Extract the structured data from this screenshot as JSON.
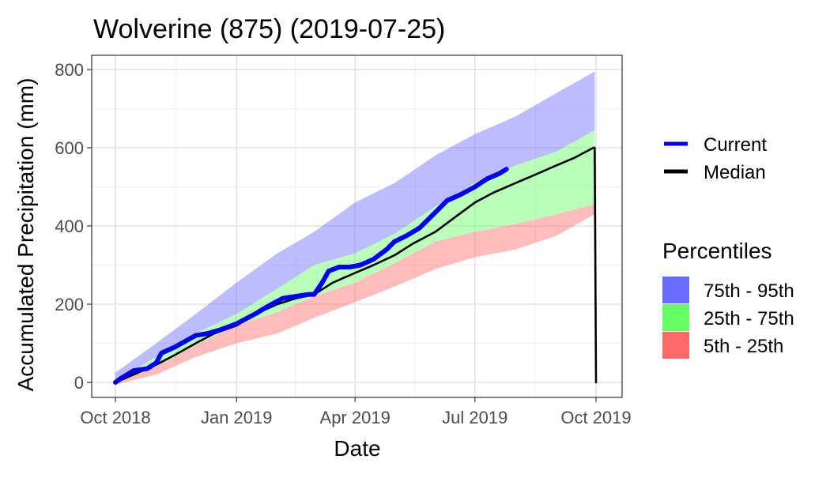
{
  "chart_data": {
    "type": "area",
    "title": "Wolverine (875) (2019-07-25)",
    "xlabel": "Date",
    "ylabel": "Accumulated Precipitation (mm)",
    "xlim": [
      "2018-10-01",
      "2019-10-01"
    ],
    "ylim": [
      0,
      800
    ],
    "x_ticks": [
      {
        "date": "2018-10-01",
        "label": "Oct 2018"
      },
      {
        "date": "2019-01-01",
        "label": "Jan 2019"
      },
      {
        "date": "2019-04-01",
        "label": "Apr 2019"
      },
      {
        "date": "2019-07-01",
        "label": "Jul 2019"
      },
      {
        "date": "2019-10-01",
        "label": "Oct 2019"
      }
    ],
    "y_ticks": [
      0,
      200,
      400,
      600,
      800
    ],
    "grid": true,
    "legend_position": "right",
    "legend_lines_title": "",
    "legend_bands_title": "Percentiles",
    "bands": [
      {
        "name": "75th - 95th",
        "color": "#6b6bff",
        "x": [
          "2018-10-01",
          "2018-11-01",
          "2018-12-01",
          "2019-01-01",
          "2019-02-01",
          "2019-03-01",
          "2019-04-01",
          "2019-05-01",
          "2019-06-01",
          "2019-07-01",
          "2019-08-01",
          "2019-09-01",
          "2019-09-30"
        ],
        "lower": [
          3,
          65,
          125,
          175,
          240,
          300,
          330,
          380,
          450,
          510,
          555,
          590,
          645
        ],
        "upper": [
          25,
          100,
          175,
          255,
          330,
          385,
          460,
          510,
          580,
          635,
          680,
          740,
          795
        ]
      },
      {
        "name": "25th - 75th",
        "color": "#66ff66",
        "x": [
          "2018-10-01",
          "2018-11-01",
          "2018-12-01",
          "2019-01-01",
          "2019-02-01",
          "2019-03-01",
          "2019-04-01",
          "2019-05-01",
          "2019-06-01",
          "2019-07-01",
          "2019-08-01",
          "2019-09-01",
          "2019-09-30"
        ],
        "lower": [
          -3,
          40,
          95,
          145,
          180,
          220,
          255,
          305,
          360,
          385,
          405,
          430,
          455
        ],
        "upper": [
          3,
          65,
          125,
          175,
          240,
          300,
          330,
          380,
          450,
          510,
          555,
          590,
          645
        ]
      },
      {
        "name": "5th - 25th",
        "color": "#ff6b6b",
        "x": [
          "2018-10-01",
          "2018-11-01",
          "2018-12-01",
          "2019-01-01",
          "2019-02-01",
          "2019-03-01",
          "2019-04-01",
          "2019-05-01",
          "2019-06-01",
          "2019-07-01",
          "2019-08-01",
          "2019-09-01",
          "2019-09-30"
        ],
        "lower": [
          -5,
          20,
          65,
          100,
          125,
          165,
          205,
          245,
          290,
          320,
          340,
          375,
          430
        ],
        "upper": [
          -3,
          40,
          95,
          145,
          180,
          220,
          255,
          305,
          360,
          385,
          405,
          430,
          455
        ]
      }
    ],
    "series": [
      {
        "name": "Current",
        "color": "#0000ee",
        "x": [
          "2018-10-01",
          "2018-10-05",
          "2018-10-15",
          "2018-10-25",
          "2018-11-01",
          "2018-11-05",
          "2018-11-15",
          "2018-12-01",
          "2018-12-10",
          "2018-12-20",
          "2019-01-01",
          "2019-01-15",
          "2019-01-25",
          "2019-02-05",
          "2019-02-15",
          "2019-02-25",
          "2019-03-01",
          "2019-03-07",
          "2019-03-12",
          "2019-03-20",
          "2019-03-28",
          "2019-04-05",
          "2019-04-15",
          "2019-04-25",
          "2019-05-01",
          "2019-05-10",
          "2019-05-20",
          "2019-06-01",
          "2019-06-10",
          "2019-06-20",
          "2019-07-01",
          "2019-07-10",
          "2019-07-20",
          "2019-07-25"
        ],
        "y": [
          0,
          10,
          30,
          35,
          50,
          75,
          90,
          120,
          125,
          135,
          150,
          175,
          195,
          215,
          220,
          225,
          225,
          255,
          285,
          295,
          295,
          300,
          315,
          340,
          360,
          375,
          395,
          435,
          465,
          480,
          500,
          520,
          535,
          545
        ]
      },
      {
        "name": "Median",
        "color": "#000000",
        "x": [
          "2018-10-01",
          "2018-10-15",
          "2018-11-01",
          "2018-11-15",
          "2018-12-01",
          "2018-12-15",
          "2019-01-01",
          "2019-01-15",
          "2019-02-01",
          "2019-02-15",
          "2019-03-01",
          "2019-03-15",
          "2019-04-01",
          "2019-04-15",
          "2019-05-01",
          "2019-05-15",
          "2019-06-01",
          "2019-06-15",
          "2019-07-01",
          "2019-07-15",
          "2019-08-01",
          "2019-08-15",
          "2019-09-01",
          "2019-09-15",
          "2019-09-29",
          "2019-09-30",
          "2019-10-01"
        ],
        "y": [
          0,
          20,
          45,
          70,
          100,
          125,
          145,
          175,
          200,
          215,
          225,
          255,
          280,
          300,
          325,
          355,
          385,
          420,
          460,
          485,
          510,
          530,
          555,
          575,
          600,
          600,
          0
        ]
      }
    ]
  }
}
